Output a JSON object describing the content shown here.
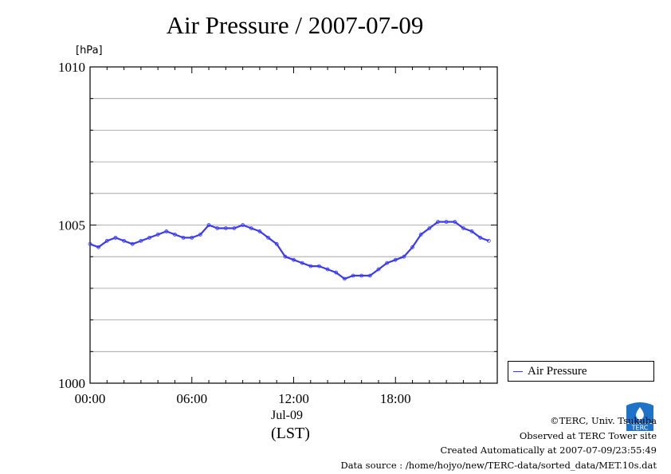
{
  "header": {
    "title": "Air Pressure / 2007-07-09",
    "unit": "[hPa]"
  },
  "axes": {
    "date_label": "Jul-09",
    "tz_label": "(LST)"
  },
  "legend": {
    "label": "Air Pressure"
  },
  "footer": {
    "copyright": "©TERC, Univ. Tsukuba",
    "site": "Observed at TERC Tower site",
    "created": "Created Automatically at 2007-07-09/23:55:49",
    "source": "Data source : /home/hojyo/new/TERC-data/sorted_data/MET.10s.dat"
  },
  "logo": {
    "text": "TERC",
    "icon": "terc-logo-icon"
  },
  "colors": {
    "series": "#3a3af0",
    "grid": "#999999",
    "axis": "#000000"
  },
  "chart_data": {
    "type": "line",
    "title": "Air Pressure / 2007-07-09",
    "ylabel": "[hPa]",
    "xlabel": "(LST)",
    "ylim": [
      1000,
      1010
    ],
    "xlim": [
      0,
      24
    ],
    "y_ticks": [
      1000,
      1005,
      1010
    ],
    "y_minor_step": 1,
    "x_ticks": [
      0,
      6,
      12,
      18
    ],
    "x_tick_labels": [
      "00:00",
      "06:00",
      "12:00",
      "18:00"
    ],
    "grid": true,
    "legend": "right",
    "series": [
      {
        "name": "Air Pressure",
        "x": [
          0,
          0.5,
          1,
          1.5,
          2,
          2.5,
          3,
          3.5,
          4,
          4.5,
          5,
          5.5,
          6,
          6.5,
          7,
          7.5,
          8,
          8.5,
          9,
          9.5,
          10,
          10.5,
          11,
          11.5,
          12,
          12.5,
          13,
          13.5,
          14,
          14.5,
          15,
          15.5,
          16,
          16.5,
          17,
          17.5,
          18,
          18.5,
          19,
          19.5,
          20,
          20.5,
          21,
          21.5,
          22,
          22.5,
          23,
          23.5
        ],
        "values": [
          1004.4,
          1004.3,
          1004.5,
          1004.6,
          1004.5,
          1004.4,
          1004.5,
          1004.6,
          1004.7,
          1004.8,
          1004.7,
          1004.6,
          1004.6,
          1004.7,
          1005.0,
          1004.9,
          1004.9,
          1004.9,
          1005.0,
          1004.9,
          1004.8,
          1004.6,
          1004.4,
          1004.0,
          1003.9,
          1003.8,
          1003.7,
          1003.7,
          1003.6,
          1003.5,
          1003.3,
          1003.4,
          1003.4,
          1003.4,
          1003.6,
          1003.8,
          1003.9,
          1004.0,
          1004.3,
          1004.7,
          1004.9,
          1005.1,
          1005.1,
          1005.1,
          1004.9,
          1004.8,
          1004.6,
          1004.5
        ]
      }
    ]
  }
}
